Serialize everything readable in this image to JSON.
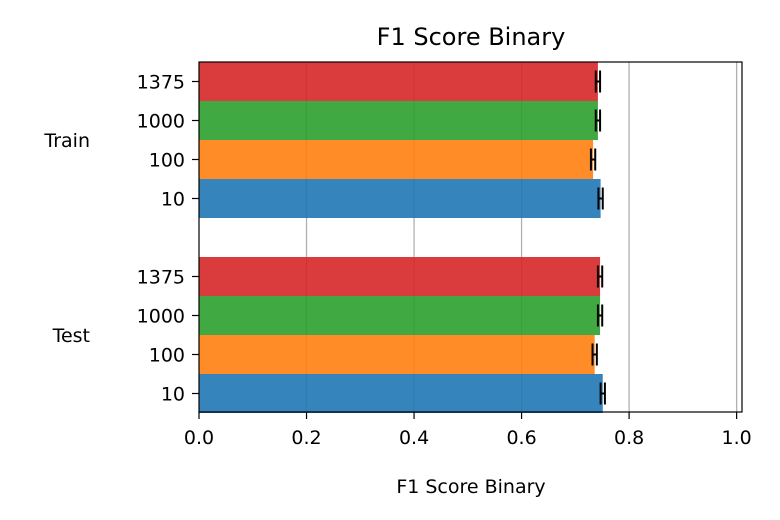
{
  "chart_data": {
    "type": "bar",
    "orientation": "horizontal",
    "title": "F1 Score Binary",
    "xlabel": "F1 Score Binary",
    "ylabel": "",
    "xlim": [
      0,
      1.01
    ],
    "xticks": [
      "0.0",
      "0.2",
      "0.4",
      "0.6",
      "0.8",
      "1.0"
    ],
    "grid": "x",
    "groups": [
      {
        "label": "Train",
        "categories": [
          "1375",
          "1000",
          "100",
          "10"
        ],
        "values": [
          0.742,
          0.742,
          0.733,
          0.747
        ],
        "errors": [
          0.004,
          0.004,
          0.004,
          0.004
        ]
      },
      {
        "label": "Test",
        "categories": [
          "1375",
          "1000",
          "100",
          "10"
        ],
        "values": [
          0.746,
          0.746,
          0.736,
          0.751
        ],
        "errors": [
          0.004,
          0.004,
          0.004,
          0.004
        ]
      }
    ],
    "category_colors": {
      "1375": "#d62728",
      "1000": "#2ca02c",
      "100": "#ff7f0e",
      "10": "#1f77b4"
    }
  }
}
